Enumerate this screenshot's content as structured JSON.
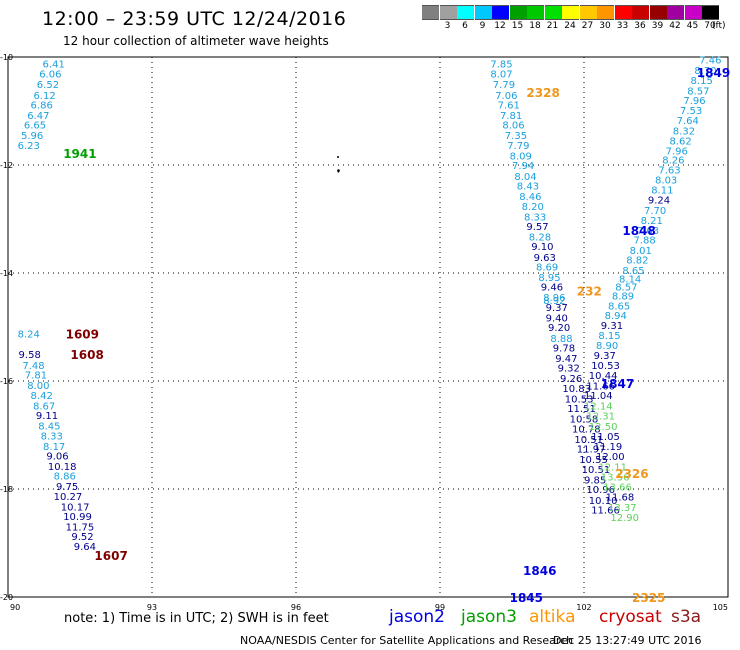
{
  "header": {
    "title": "12:00 – 23:59 UTC 12/24/2016",
    "subtitle": "12 hour collection of altimeter wave heights"
  },
  "colorbar": {
    "unit": "(ft)",
    "swatches": [
      {
        "label": "",
        "color": "#808080"
      },
      {
        "label": "3",
        "color": "#a0a0a0"
      },
      {
        "label": "6",
        "color": "#00ffff"
      },
      {
        "label": "9",
        "color": "#00c8ff"
      },
      {
        "label": "12",
        "color": "#0000ff"
      },
      {
        "label": "15",
        "color": "#00a000"
      },
      {
        "label": "18",
        "color": "#00c800"
      },
      {
        "label": "21",
        "color": "#00e000"
      },
      {
        "label": "24",
        "color": "#ffff00"
      },
      {
        "label": "27",
        "color": "#ffc800"
      },
      {
        "label": "30",
        "color": "#ff9600"
      },
      {
        "label": "33",
        "color": "#ff0000"
      },
      {
        "label": "36",
        "color": "#c80000"
      },
      {
        "label": "39",
        "color": "#960000"
      },
      {
        "label": "42",
        "color": "#a000a0"
      },
      {
        "label": "45",
        "color": "#c800c8"
      },
      {
        "label": "70",
        "color": "#000000"
      }
    ]
  },
  "axes": {
    "x_ticks": [
      "90",
      "93",
      "96",
      "99",
      "102",
      "105"
    ],
    "y_ticks": [
      "-10",
      "-12",
      "-14",
      "-16",
      "-18",
      "-20"
    ]
  },
  "footer": {
    "note": "note: 1) Time is in UTC; 2) SWH is in feet",
    "satellites": [
      {
        "name": "jason2",
        "color": "#0000e0"
      },
      {
        "name": "jason3",
        "color": "#00a000"
      },
      {
        "name": "altika",
        "color": "#ff9600"
      },
      {
        "name": "cryosat",
        "color": "#c80000"
      },
      {
        "name": "s3a",
        "color": "#8b1a1a"
      }
    ],
    "credit": "NOAA/NESDIS Center for Satellite Applications and Research",
    "timestamp": "Dec 25 13:27:49 UTC 2016"
  },
  "colors": {
    "cyan": "#1aa0dc",
    "navy": "#00008b",
    "blue": "#0000e0",
    "green": "#00a000",
    "lightgreen": "#5ad25a",
    "orange": "#f0961e",
    "darkred": "#800000"
  },
  "pass_times": [
    {
      "text": "1941",
      "lon": 91.15,
      "lat": -11.78,
      "color": "green"
    },
    {
      "text": "1609",
      "lon": 91.2,
      "lat": -15.12,
      "color": "darkred"
    },
    {
      "text": "1608",
      "lon": 91.3,
      "lat": -15.5,
      "color": "darkred"
    },
    {
      "text": "1607",
      "lon": 91.8,
      "lat": -19.22,
      "color": "darkred"
    },
    {
      "text": "2328",
      "lon": 100.8,
      "lat": -10.65,
      "color": "orange"
    },
    {
      "text": "1849",
      "lon": 104.35,
      "lat": -10.28,
      "color": "blue"
    },
    {
      "text": "1848",
      "lon": 102.8,
      "lat": -13.2,
      "color": "blue"
    },
    {
      "text": "232",
      "lon": 101.85,
      "lat": -14.32,
      "color": "orange"
    },
    {
      "text": "1847",
      "lon": 102.35,
      "lat": -16.04,
      "color": "blue"
    },
    {
      "text": "2326",
      "lon": 102.65,
      "lat": -17.7,
      "color": "orange"
    },
    {
      "text": "1846",
      "lon": 100.73,
      "lat": -19.5,
      "color": "blue"
    },
    {
      "text": "1845",
      "lon": 100.45,
      "lat": -20.0,
      "color": "blue"
    },
    {
      "text": "2325",
      "lon": 103.0,
      "lat": -20.0,
      "color": "orange"
    }
  ],
  "swh_labels": [
    {
      "text": "6.41",
      "lon": 90.72,
      "lat": -10.12,
      "color": "cyan"
    },
    {
      "text": "6.06",
      "lon": 90.65,
      "lat": -10.31,
      "color": "cyan"
    },
    {
      "text": "6.52",
      "lon": 90.6,
      "lat": -10.5,
      "color": "cyan"
    },
    {
      "text": "6.12",
      "lon": 90.53,
      "lat": -10.7,
      "color": "cyan"
    },
    {
      "text": "6.86",
      "lon": 90.47,
      "lat": -10.88,
      "color": "cyan"
    },
    {
      "text": "6.47",
      "lon": 90.4,
      "lat": -11.07,
      "color": "cyan"
    },
    {
      "text": "6.65",
      "lon": 90.33,
      "lat": -11.25,
      "color": "cyan"
    },
    {
      "text": "5.96",
      "lon": 90.27,
      "lat": -11.44,
      "color": "cyan"
    },
    {
      "text": "6.23",
      "lon": 90.2,
      "lat": -11.63,
      "color": "cyan"
    },
    {
      "text": "8.24",
      "lon": 90.2,
      "lat": -15.12,
      "color": "cyan"
    },
    {
      "text": "9.58",
      "lon": 90.22,
      "lat": -15.5,
      "color": "navy"
    },
    {
      "text": "7.48",
      "lon": 90.3,
      "lat": -15.7,
      "color": "cyan"
    },
    {
      "text": "7.81",
      "lon": 90.35,
      "lat": -15.88,
      "color": "cyan"
    },
    {
      "text": "8.00",
      "lon": 90.4,
      "lat": -16.07,
      "color": "cyan"
    },
    {
      "text": "8.42",
      "lon": 90.47,
      "lat": -16.26,
      "color": "cyan"
    },
    {
      "text": "8.67",
      "lon": 90.52,
      "lat": -16.45,
      "color": "cyan"
    },
    {
      "text": "9.11",
      "lon": 90.58,
      "lat": -16.63,
      "color": "navy"
    },
    {
      "text": "8.45",
      "lon": 90.63,
      "lat": -16.82,
      "color": "cyan"
    },
    {
      "text": "8.33",
      "lon": 90.68,
      "lat": -17.01,
      "color": "cyan"
    },
    {
      "text": "8.17",
      "lon": 90.73,
      "lat": -17.2,
      "color": "cyan"
    },
    {
      "text": "9.06",
      "lon": 90.8,
      "lat": -17.38,
      "color": "navy"
    },
    {
      "text": "10.18",
      "lon": 90.83,
      "lat": -17.57,
      "color": "navy"
    },
    {
      "text": "8.86",
      "lon": 90.95,
      "lat": -17.75,
      "color": "cyan"
    },
    {
      "text": "9.75",
      "lon": 91.0,
      "lat": -17.94,
      "color": "navy"
    },
    {
      "text": "10.27",
      "lon": 90.95,
      "lat": -18.13,
      "color": "navy"
    },
    {
      "text": "10.17",
      "lon": 91.1,
      "lat": -18.32,
      "color": "navy"
    },
    {
      "text": "10.99",
      "lon": 91.15,
      "lat": -18.5,
      "color": "navy"
    },
    {
      "text": "11.75",
      "lon": 91.2,
      "lat": -18.69,
      "color": "navy"
    },
    {
      "text": "9.52",
      "lon": 91.32,
      "lat": -18.87,
      "color": "navy"
    },
    {
      "text": "9.64",
      "lon": 91.37,
      "lat": -19.06,
      "color": "navy"
    },
    {
      "text": "7.85",
      "lon": 100.05,
      "lat": -10.12,
      "color": "cyan"
    },
    {
      "text": "8.07",
      "lon": 100.05,
      "lat": -10.31,
      "color": "cyan"
    },
    {
      "text": "7.79",
      "lon": 100.1,
      "lat": -10.5,
      "color": "cyan"
    },
    {
      "text": "7.06",
      "lon": 100.15,
      "lat": -10.7,
      "color": "cyan"
    },
    {
      "text": "7.61",
      "lon": 100.2,
      "lat": -10.88,
      "color": "cyan"
    },
    {
      "text": "7.81",
      "lon": 100.25,
      "lat": -11.07,
      "color": "cyan"
    },
    {
      "text": "8.06",
      "lon": 100.3,
      "lat": -11.25,
      "color": "cyan"
    },
    {
      "text": "7.35",
      "lon": 100.35,
      "lat": -11.44,
      "color": "cyan"
    },
    {
      "text": "7.79",
      "lon": 100.4,
      "lat": -11.63,
      "color": "cyan"
    },
    {
      "text": "8.09",
      "lon": 100.45,
      "lat": -11.82,
      "color": "cyan"
    },
    {
      "text": "7.94",
      "lon": 100.5,
      "lat": -12.0,
      "color": "cyan"
    },
    {
      "text": "8.04",
      "lon": 100.55,
      "lat": -12.2,
      "color": "cyan"
    },
    {
      "text": "8.43",
      "lon": 100.6,
      "lat": -12.38,
      "color": "cyan"
    },
    {
      "text": "8.46",
      "lon": 100.65,
      "lat": -12.57,
      "color": "cyan"
    },
    {
      "text": "8.20",
      "lon": 100.7,
      "lat": -12.76,
      "color": "cyan"
    },
    {
      "text": "8.33",
      "lon": 100.75,
      "lat": -12.95,
      "color": "cyan"
    },
    {
      "text": "9.57",
      "lon": 100.8,
      "lat": -13.13,
      "color": "navy"
    },
    {
      "text": "8.28",
      "lon": 100.85,
      "lat": -13.32,
      "color": "cyan"
    },
    {
      "text": "9.10",
      "lon": 100.9,
      "lat": -13.5,
      "color": "navy"
    },
    {
      "text": "9.63",
      "lon": 100.95,
      "lat": -13.7,
      "color": "navy"
    },
    {
      "text": "8.69",
      "lon": 101.0,
      "lat": -13.88,
      "color": "cyan"
    },
    {
      "text": "8.95",
      "lon": 101.05,
      "lat": -14.07,
      "color": "cyan"
    },
    {
      "text": "9.46",
      "lon": 101.1,
      "lat": -14.25,
      "color": "navy"
    },
    {
      "text": "8.96",
      "lon": 101.15,
      "lat": -14.44,
      "color": "cyan"
    },
    {
      "text": "8.92",
      "lon": 101.15,
      "lat": -14.5,
      "color": "cyan"
    },
    {
      "text": "9.37",
      "lon": 101.2,
      "lat": -14.63,
      "color": "navy"
    },
    {
      "text": "9.40",
      "lon": 101.2,
      "lat": -14.82,
      "color": "navy"
    },
    {
      "text": "9.20",
      "lon": 101.25,
      "lat": -15.0,
      "color": "navy"
    },
    {
      "text": "8.88",
      "lon": 101.3,
      "lat": -15.2,
      "color": "cyan"
    },
    {
      "text": "9.78",
      "lon": 101.35,
      "lat": -15.38,
      "color": "navy"
    },
    {
      "text": "9.47",
      "lon": 101.4,
      "lat": -15.57,
      "color": "navy"
    },
    {
      "text": "9.32",
      "lon": 101.45,
      "lat": -15.75,
      "color": "navy"
    },
    {
      "text": "9.26",
      "lon": 101.5,
      "lat": -15.94,
      "color": "navy"
    },
    {
      "text": "10.83",
      "lon": 101.55,
      "lat": -16.13,
      "color": "navy"
    },
    {
      "text": "10.53",
      "lon": 101.6,
      "lat": -16.32,
      "color": "navy"
    },
    {
      "text": "11.51",
      "lon": 101.65,
      "lat": -16.5,
      "color": "navy"
    },
    {
      "text": "10.58",
      "lon": 101.7,
      "lat": -16.69,
      "color": "navy"
    },
    {
      "text": "10.78",
      "lon": 101.75,
      "lat": -16.88,
      "color": "navy"
    },
    {
      "text": "10.51",
      "lon": 101.8,
      "lat": -17.07,
      "color": "navy"
    },
    {
      "text": "11.97",
      "lon": 101.85,
      "lat": -17.25,
      "color": "navy"
    },
    {
      "text": "10.55",
      "lon": 101.9,
      "lat": -17.44,
      "color": "navy"
    },
    {
      "text": "10.51",
      "lon": 101.95,
      "lat": -17.63,
      "color": "navy"
    },
    {
      "text": "9.85",
      "lon": 102.0,
      "lat": -17.82,
      "color": "navy"
    },
    {
      "text": "10.96",
      "lon": 102.05,
      "lat": -18.0,
      "color": "navy"
    },
    {
      "text": "10.10",
      "lon": 102.1,
      "lat": -18.2,
      "color": "navy"
    },
    {
      "text": "11.66",
      "lon": 102.15,
      "lat": -18.38,
      "color": "navy"
    },
    {
      "text": "7.46",
      "lon": 104.4,
      "lat": -10.05,
      "color": "cyan"
    },
    {
      "text": "8.70",
      "lon": 104.3,
      "lat": -10.24,
      "color": "cyan"
    },
    {
      "text": "8.15",
      "lon": 104.22,
      "lat": -10.43,
      "color": "cyan"
    },
    {
      "text": "8.57",
      "lon": 104.15,
      "lat": -10.62,
      "color": "cyan"
    },
    {
      "text": "7.96",
      "lon": 104.07,
      "lat": -10.8,
      "color": "cyan"
    },
    {
      "text": "7.53",
      "lon": 104.0,
      "lat": -10.98,
      "color": "cyan"
    },
    {
      "text": "7.64",
      "lon": 103.93,
      "lat": -11.17,
      "color": "cyan"
    },
    {
      "text": "8.32",
      "lon": 103.85,
      "lat": -11.36,
      "color": "cyan"
    },
    {
      "text": "8.62",
      "lon": 103.78,
      "lat": -11.55,
      "color": "cyan"
    },
    {
      "text": "7.96",
      "lon": 103.7,
      "lat": -11.73,
      "color": "cyan"
    },
    {
      "text": "8.26",
      "lon": 103.63,
      "lat": -11.9,
      "color": "cyan"
    },
    {
      "text": "7.63",
      "lon": 103.55,
      "lat": -12.08,
      "color": "cyan"
    },
    {
      "text": "8.03",
      "lon": 103.48,
      "lat": -12.27,
      "color": "cyan"
    },
    {
      "text": "8.11",
      "lon": 103.4,
      "lat": -12.45,
      "color": "cyan"
    },
    {
      "text": "9.24",
      "lon": 103.33,
      "lat": -12.64,
      "color": "navy"
    },
    {
      "text": "7.70",
      "lon": 103.25,
      "lat": -12.83,
      "color": "cyan"
    },
    {
      "text": "8.21",
      "lon": 103.18,
      "lat": -13.02,
      "color": "cyan"
    },
    {
      "text": "7.63",
      "lon": 103.1,
      "lat": -13.2,
      "color": "cyan"
    },
    {
      "text": "7.88",
      "lon": 103.03,
      "lat": -13.38,
      "color": "cyan"
    },
    {
      "text": "8.01",
      "lon": 102.95,
      "lat": -13.57,
      "color": "cyan"
    },
    {
      "text": "8.82",
      "lon": 102.88,
      "lat": -13.75,
      "color": "cyan"
    },
    {
      "text": "8.65",
      "lon": 102.8,
      "lat": -13.94,
      "color": "cyan"
    },
    {
      "text": "8.14",
      "lon": 102.73,
      "lat": -14.1,
      "color": "cyan"
    },
    {
      "text": "8.57",
      "lon": 102.65,
      "lat": -14.25,
      "color": "cyan"
    },
    {
      "text": "8.89",
      "lon": 102.58,
      "lat": -14.42,
      "color": "cyan"
    },
    {
      "text": "8.65",
      "lon": 102.5,
      "lat": -14.6,
      "color": "cyan"
    },
    {
      "text": "8.94",
      "lon": 102.43,
      "lat": -14.78,
      "color": "cyan"
    },
    {
      "text": "9.31",
      "lon": 102.35,
      "lat": -14.96,
      "color": "navy"
    },
    {
      "text": "8.15",
      "lon": 102.3,
      "lat": -15.15,
      "color": "cyan"
    },
    {
      "text": "8.90",
      "lon": 102.25,
      "lat": -15.33,
      "color": "cyan"
    },
    {
      "text": "9.37",
      "lon": 102.2,
      "lat": -15.52,
      "color": "navy"
    },
    {
      "text": "10.53",
      "lon": 102.15,
      "lat": -15.7,
      "color": "navy"
    },
    {
      "text": "10.44",
      "lon": 102.1,
      "lat": -15.89,
      "color": "navy"
    },
    {
      "text": "11.66",
      "lon": 102.05,
      "lat": -16.08,
      "color": "navy"
    },
    {
      "text": "11.04",
      "lon": 102.0,
      "lat": -16.26,
      "color": "navy"
    },
    {
      "text": "12.14",
      "lon": 102.0,
      "lat": -16.45,
      "color": "lightgreen"
    },
    {
      "text": "12.31",
      "lon": 102.05,
      "lat": -16.64,
      "color": "lightgreen"
    },
    {
      "text": "12.50",
      "lon": 102.1,
      "lat": -16.83,
      "color": "lightgreen"
    },
    {
      "text": "11.05",
      "lon": 102.15,
      "lat": -17.02,
      "color": "navy"
    },
    {
      "text": "11.19",
      "lon": 102.2,
      "lat": -17.2,
      "color": "navy"
    },
    {
      "text": "12.00",
      "lon": 102.25,
      "lat": -17.39,
      "color": "navy"
    },
    {
      "text": "12.11",
      "lon": 102.3,
      "lat": -17.58,
      "color": "lightgreen"
    },
    {
      "text": "13.56",
      "lon": 102.35,
      "lat": -17.77,
      "color": "lightgreen"
    },
    {
      "text": "13.66",
      "lon": 102.4,
      "lat": -17.95,
      "color": "lightgreen"
    },
    {
      "text": "11.68",
      "lon": 102.45,
      "lat": -18.14,
      "color": "navy"
    },
    {
      "text": "13.37",
      "lon": 102.5,
      "lat": -18.33,
      "color": "lightgreen"
    },
    {
      "text": "12.90",
      "lon": 102.55,
      "lat": -18.52,
      "color": "lightgreen"
    }
  ]
}
